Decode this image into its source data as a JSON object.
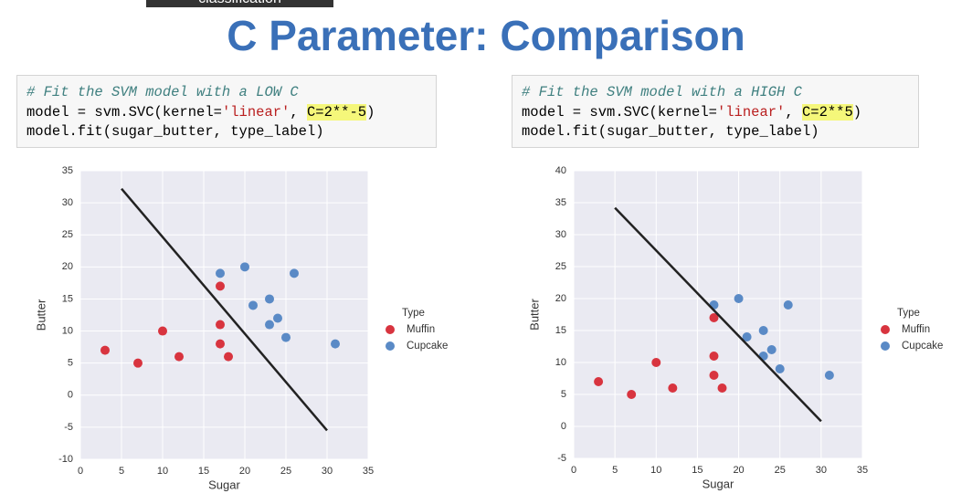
{
  "header": {
    "tab": "classification",
    "title": "C Parameter: Comparison"
  },
  "code_blocks": [
    {
      "lines": [
        [
          {
            "text": "# Fit the SVM model with a LOW C",
            "kind": "comment"
          }
        ],
        [
          {
            "text": "model = svm.SVC(kernel=",
            "kind": "plain"
          },
          {
            "text": "'linear'",
            "kind": "string"
          },
          {
            "text": ", ",
            "kind": "plain"
          },
          {
            "text": "C=2**-5",
            "kind": "highlight"
          },
          {
            "text": ")",
            "kind": "plain"
          }
        ],
        [
          {
            "text": "model.fit(sugar_butter, type_label)",
            "kind": "plain"
          }
        ]
      ]
    },
    {
      "lines": [
        [
          {
            "text": "# Fit the SVM model with a HIGH C",
            "kind": "comment"
          }
        ],
        [
          {
            "text": "model = svm.SVC(kernel=",
            "kind": "plain"
          },
          {
            "text": "'linear'",
            "kind": "string"
          },
          {
            "text": ", ",
            "kind": "plain"
          },
          {
            "text": "C=2**5",
            "kind": "highlight"
          },
          {
            "text": ")",
            "kind": "plain"
          }
        ],
        [
          {
            "text": "model.fit(sugar_butter, type_label)",
            "kind": "plain"
          }
        ]
      ]
    }
  ],
  "chart_data": [
    {
      "type": "scatter",
      "x_label": "Sugar",
      "y_label": "Butter",
      "legend_title": "Type",
      "xlim": [
        0,
        35
      ],
      "xticks": [
        0,
        5,
        10,
        15,
        20,
        25,
        30,
        35
      ],
      "ylim": [
        -10,
        35
      ],
      "yticks": [
        -10,
        -5,
        0,
        5,
        10,
        15,
        20,
        25,
        30,
        35
      ],
      "grid": true,
      "series": [
        {
          "name": "Muffin",
          "color": "#d8343f",
          "x": [
            3,
            7,
            10,
            12,
            17,
            17,
            17,
            18
          ],
          "values": [
            7,
            5,
            10,
            6,
            17,
            11,
            8,
            6
          ]
        },
        {
          "name": "Cupcake",
          "color": "#5a8ac6",
          "x": [
            17,
            20,
            21,
            23,
            23,
            24,
            25,
            26,
            31
          ],
          "values": [
            19,
            20,
            14,
            15,
            11,
            12,
            9,
            19,
            8
          ]
        }
      ],
      "boundary": {
        "color": "#222222",
        "x": [
          5,
          30
        ],
        "values": [
          32.2,
          -5.5
        ]
      }
    },
    {
      "type": "scatter",
      "x_label": "Sugar",
      "y_label": "Butter",
      "legend_title": "Type",
      "xlim": [
        0,
        35
      ],
      "xticks": [
        0,
        5,
        10,
        15,
        20,
        25,
        30,
        35
      ],
      "ylim": [
        -5,
        40
      ],
      "yticks": [
        -5,
        0,
        5,
        10,
        15,
        20,
        25,
        30,
        35,
        40
      ],
      "grid": true,
      "series": [
        {
          "name": "Muffin",
          "color": "#d8343f",
          "x": [
            3,
            7,
            10,
            12,
            17,
            17,
            17,
            18
          ],
          "values": [
            7,
            5,
            10,
            6,
            17,
            11,
            8,
            6
          ]
        },
        {
          "name": "Cupcake",
          "color": "#5a8ac6",
          "x": [
            17,
            20,
            21,
            23,
            23,
            24,
            25,
            26,
            31
          ],
          "values": [
            19,
            20,
            14,
            15,
            11,
            12,
            9,
            19,
            8
          ]
        }
      ],
      "boundary": {
        "color": "#222222",
        "x": [
          5,
          30
        ],
        "values": [
          34.2,
          0.8
        ]
      }
    }
  ]
}
